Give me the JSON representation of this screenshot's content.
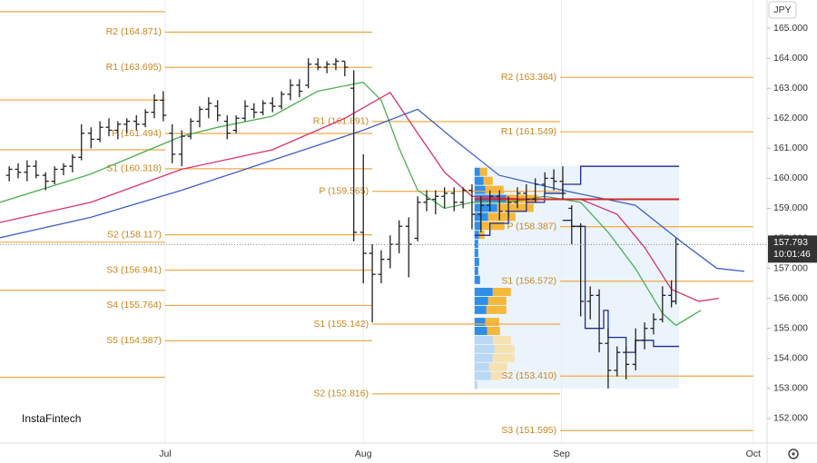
{
  "chart_data": {
    "type": "ohlc",
    "currency": "JPY",
    "logo": "InstaFintech",
    "last_price": 157.793,
    "countdown": "10:01:46",
    "ylim": [
      151.18,
      165.94
    ],
    "yticks": [
      {
        "value": 152,
        "label": "152.000"
      },
      {
        "value": 153,
        "label": "153.000"
      },
      {
        "value": 154,
        "label": "154.000"
      },
      {
        "value": 155,
        "label": "155.000"
      },
      {
        "value": 156,
        "label": "156.000"
      },
      {
        "value": 157,
        "label": "157.000"
      },
      {
        "value": 158,
        "label": "158.000"
      },
      {
        "value": 159,
        "label": "159.000"
      },
      {
        "value": 160,
        "label": "160.000"
      },
      {
        "value": 161,
        "label": "161.000"
      },
      {
        "value": 162,
        "label": "162.000"
      },
      {
        "value": 163,
        "label": "163.000"
      },
      {
        "value": 164,
        "label": "164.000"
      },
      {
        "value": 165,
        "label": "165.000"
      }
    ],
    "xlim": [
      4.16,
      124.16
    ],
    "xticks": [
      {
        "value": 30,
        "label": "Jul"
      },
      {
        "value": 61,
        "label": "Aug"
      },
      {
        "value": 92,
        "label": "Sep"
      },
      {
        "value": 122,
        "label": "Oct"
      }
    ],
    "bar_color": "#222222",
    "ohlc": {
      "x": [
        5.6,
        7.0,
        8.4,
        9.8,
        11.3,
        12.7,
        14.1,
        15.5,
        16.9,
        18.4,
        19.8,
        21.2,
        22.6,
        24.0,
        25.5,
        26.9,
        28.3,
        29.7,
        31.1,
        32.6,
        34.0,
        35.4,
        36.8,
        38.2,
        39.7,
        41.1,
        42.5,
        43.9,
        45.3,
        46.8,
        48.2,
        49.6,
        51.0,
        52.4,
        53.9,
        55.3,
        56.7,
        58.1,
        59.5,
        61.0,
        62.4,
        63.8,
        65.2,
        66.6,
        68.1,
        69.5,
        70.9,
        72.3,
        73.7,
        75.2,
        76.6,
        78.0,
        79.4,
        80.8,
        82.3,
        83.7,
        85.1,
        86.5,
        87.9,
        89.4,
        90.8,
        92.2,
        93.6,
        95.0,
        96.5,
        97.9,
        99.3,
        100.7,
        102.1,
        103.6,
        105.0,
        106.4,
        107.8,
        109.2,
        109.9
      ],
      "open": [
        160.1,
        160.3,
        160.2,
        160.4,
        160.1,
        159.9,
        160.3,
        160.4,
        160.7,
        161.5,
        161.3,
        161.7,
        161.6,
        161.8,
        161.9,
        161.8,
        162.2,
        162.6,
        161.5,
        160.8,
        161.4,
        161.9,
        162.3,
        162.4,
        161.9,
        161.6,
        162.0,
        162.3,
        162.2,
        162.5,
        162.4,
        162.8,
        163.1,
        163.1,
        163.8,
        163.7,
        163.8,
        163.9,
        163.0,
        158.2,
        157.5,
        156.8,
        157.3,
        157.8,
        158.4,
        158.0,
        159.2,
        159.3,
        159.4,
        159.5,
        159.2,
        159.6,
        158.8,
        159.1,
        159.4,
        158.9,
        159.2,
        159.5,
        159.3,
        159.8,
        160.0,
        159.9,
        159.0,
        158.4,
        155.9,
        156.1,
        154.5,
        153.6,
        154.2,
        153.8,
        154.6,
        155.0,
        155.3,
        156.1,
        155.9
      ],
      "high": [
        160.4,
        160.5,
        160.6,
        160.6,
        160.2,
        160.4,
        160.5,
        160.8,
        161.8,
        161.7,
        161.9,
        162.0,
        161.9,
        162.0,
        162.1,
        162.3,
        162.8,
        162.9,
        161.8,
        161.6,
        162.0,
        162.4,
        162.7,
        162.6,
        162.1,
        162.1,
        162.6,
        162.5,
        162.6,
        162.7,
        162.9,
        163.3,
        163.3,
        164.0,
        164.0,
        163.9,
        164.0,
        163.9,
        163.6,
        160.8,
        157.8,
        157.6,
        158.1,
        158.6,
        158.7,
        159.4,
        159.6,
        159.6,
        159.7,
        159.7,
        159.7,
        159.8,
        159.4,
        159.6,
        159.6,
        159.4,
        159.7,
        159.8,
        160.0,
        160.2,
        160.3,
        160.4,
        159.1,
        158.5,
        156.4,
        156.3,
        155.0,
        154.4,
        154.4,
        155.0,
        155.2,
        155.5,
        156.4,
        156.6,
        158.0
      ],
      "low": [
        159.9,
        160.0,
        159.9,
        160.0,
        159.6,
        159.8,
        160.1,
        160.2,
        160.6,
        161.0,
        161.2,
        161.4,
        161.3,
        161.5,
        161.6,
        161.7,
        162.0,
        161.9,
        160.5,
        160.4,
        161.3,
        161.7,
        162.0,
        161.9,
        161.3,
        161.5,
        161.9,
        162.0,
        162.1,
        162.2,
        162.3,
        162.6,
        162.7,
        163.0,
        163.6,
        163.5,
        163.6,
        163.4,
        157.9,
        156.5,
        155.2,
        156.5,
        157.0,
        157.5,
        156.7,
        157.9,
        158.9,
        158.8,
        159.0,
        158.9,
        159.0,
        158.3,
        158.2,
        158.9,
        158.6,
        158.7,
        159.0,
        159.2,
        159.2,
        159.5,
        159.6,
        159.3,
        157.8,
        155.4,
        155.3,
        154.2,
        153.0,
        153.4,
        153.3,
        153.6,
        154.3,
        154.8,
        155.2,
        155.7,
        155.8
      ],
      "close": [
        160.3,
        160.2,
        160.4,
        160.1,
        159.9,
        160.3,
        160.4,
        160.7,
        161.5,
        161.3,
        161.7,
        161.6,
        161.8,
        161.9,
        161.8,
        162.2,
        162.6,
        162.1,
        160.8,
        161.4,
        161.9,
        162.3,
        162.5,
        162.1,
        161.5,
        162.0,
        162.4,
        162.2,
        162.5,
        162.4,
        162.8,
        163.1,
        162.9,
        163.8,
        163.7,
        163.8,
        163.9,
        163.7,
        158.2,
        157.5,
        156.8,
        157.3,
        157.8,
        158.4,
        157.8,
        159.2,
        159.3,
        159.4,
        159.5,
        159.2,
        159.6,
        158.8,
        159.1,
        159.4,
        158.9,
        159.2,
        159.5,
        159.3,
        159.8,
        160.0,
        159.9,
        159.5,
        158.4,
        155.9,
        156.1,
        154.5,
        153.6,
        154.2,
        153.8,
        154.6,
        155.0,
        155.3,
        156.1,
        155.9,
        157.8
      ]
    },
    "lines": [
      {
        "color": "#4caf50",
        "x": [
          4.16,
          18.36,
          32.56,
          38.24,
          46.76,
          53.85,
          60.95,
          63.8,
          66.6,
          69.5,
          73.7,
          78.0,
          83.7,
          89.35,
          95.0,
          99.3,
          103.55,
          107.8,
          109.9,
          113.8
        ],
        "values": [
          159.2,
          160.14,
          161.4,
          161.7,
          162.07,
          162.9,
          163.2,
          162.6,
          161.0,
          159.6,
          159.0,
          159.2,
          159.2,
          159.4,
          159.2,
          158.2,
          157.0,
          155.5,
          155.1,
          155.6
        ]
      },
      {
        "color": "#d6336c",
        "x": [
          4.16,
          18.36,
          32.56,
          46.76,
          58.1,
          65.2,
          69.5,
          73.7,
          78.0,
          86.5,
          95.0,
          100.7,
          105.0,
          109.2,
          113.5,
          116.6
        ],
        "values": [
          158.53,
          159.2,
          160.3,
          160.95,
          162.0,
          162.86,
          161.5,
          160.2,
          159.4,
          159.3,
          159.3,
          158.8,
          157.7,
          156.3,
          155.9,
          156.0
        ]
      },
      {
        "color": "#3f5fc4",
        "x": [
          4.16,
          18.36,
          32.56,
          46.76,
          60.95,
          69.5,
          75.15,
          82.25,
          92.2,
          103.55,
          110.65,
          116.3,
          120.6
        ],
        "values": [
          158.02,
          158.7,
          159.6,
          160.6,
          161.6,
          162.3,
          161.3,
          160.1,
          159.6,
          159.1,
          157.9,
          157.0,
          156.9
        ]
      },
      {
        "color": "#1f2a8c",
        "step": true,
        "x": [
          78.4,
          80.8,
          83.7,
          86.5,
          89.35,
          92.2,
          95.0,
          110.4
        ],
        "values": [
          158.1,
          158.5,
          158.9,
          159.2,
          159.5,
          159.8,
          160.4,
          160.4
        ]
      },
      {
        "color": "#1f2a8c",
        "step": true,
        "x": [
          92.2,
          93.6,
          95.7,
          98.6,
          99.3,
          102.1,
          103.55,
          106.4,
          110.4
        ],
        "values": [
          158.6,
          158.4,
          155.0,
          155.6,
          154.7,
          154.2,
          154.6,
          154.4,
          154.4
        ]
      }
    ],
    "profile": {
      "x": [
        78.4,
        110.4
      ],
      "range": [
        153.0,
        160.4
      ],
      "fill": "#e3f0fb",
      "buy_color": "#2f8ee8",
      "sell_color": "#f5b83d",
      "pale_buy": "#b9d8f3",
      "pale_sell": "#f6e1b0",
      "value_area": [
        154.75,
        160.4
      ],
      "rows": [
        {
          "price": 160.2,
          "buy": 6,
          "sell": 8
        },
        {
          "price": 159.9,
          "buy": 10,
          "sell": 10
        },
        {
          "price": 159.6,
          "buy": 12,
          "sell": 20
        },
        {
          "price": 159.3,
          "buy": 35,
          "sell": 35
        },
        {
          "price": 159.0,
          "buy": 25,
          "sell": 40
        },
        {
          "price": 158.7,
          "buy": 15,
          "sell": 30
        },
        {
          "price": 158.4,
          "buy": 8,
          "sell": 25
        },
        {
          "price": 158.1,
          "buy": 5,
          "sell": 6
        },
        {
          "price": 157.8,
          "buy": 4,
          "sell": 0
        },
        {
          "price": 157.5,
          "buy": 4,
          "sell": 0
        },
        {
          "price": 157.2,
          "buy": 5,
          "sell": 0
        },
        {
          "price": 156.9,
          "buy": 4,
          "sell": 0
        },
        {
          "price": 156.6,
          "buy": 6,
          "sell": 0
        },
        {
          "price": 156.2,
          "buy": 20,
          "sell": 20
        },
        {
          "price": 155.9,
          "buy": 15,
          "sell": 20
        },
        {
          "price": 155.6,
          "buy": 13,
          "sell": 22
        },
        {
          "price": 155.2,
          "buy": 12,
          "sell": 15
        },
        {
          "price": 154.9,
          "buy": 14,
          "sell": 14
        },
        {
          "price": 154.6,
          "buy": 20,
          "sell": 20
        },
        {
          "price": 154.3,
          "buy": 22,
          "sell": 22
        },
        {
          "price": 154.0,
          "buy": 20,
          "sell": 24
        },
        {
          "price": 153.7,
          "buy": 16,
          "sell": 20
        },
        {
          "price": 153.4,
          "buy": 18,
          "sell": 12
        },
        {
          "price": 153.1,
          "buy": 3,
          "sell": 0
        }
      ]
    },
    "poc": {
      "value": 159.3,
      "x": [
        78.4,
        110.4
      ],
      "color": "#d62728"
    },
    "pivot_color": "#f0a84a",
    "pivots": [
      {
        "value": 165.55,
        "x": [
          4.16,
          30
        ]
      },
      {
        "value": 162.61,
        "x": [
          4.16,
          30
        ]
      },
      {
        "value": 160.95,
        "x": [
          4.16,
          30
        ]
      },
      {
        "value": 157.87,
        "x": [
          4.16,
          30
        ]
      },
      {
        "value": 156.27,
        "x": [
          4.16,
          30
        ]
      },
      {
        "value": 153.37,
        "x": [
          4.16,
          30
        ]
      },
      {
        "label": "R2 (164.871)",
        "value": 164.871,
        "x": [
          30,
          62.4
        ]
      },
      {
        "label": "R1 (163.695)",
        "value": 163.695,
        "x": [
          30,
          62.4
        ]
      },
      {
        "label": "P (161.494)",
        "value": 161.494,
        "x": [
          30,
          62.4
        ]
      },
      {
        "label": "S1 (160.318)",
        "value": 160.318,
        "x": [
          30,
          62.4
        ]
      },
      {
        "label": "S2 (158.117)",
        "value": 158.117,
        "x": [
          30,
          62.4
        ]
      },
      {
        "label": "S3 (156.941)",
        "value": 156.941,
        "x": [
          30,
          62.4
        ]
      },
      {
        "label": "S4 (155.764)",
        "value": 155.764,
        "x": [
          30,
          62.4
        ]
      },
      {
        "label": "S5 (154.587)",
        "value": 154.587,
        "x": [
          30,
          62.4
        ]
      },
      {
        "label": "R1 (161.891)",
        "value": 161.891,
        "x": [
          62.4,
          91.8
        ]
      },
      {
        "label": "P (159.565)",
        "value": 159.565,
        "x": [
          62.4,
          91.8
        ]
      },
      {
        "label": "S1 (155.142)",
        "value": 155.142,
        "x": [
          62.4,
          91.8
        ]
      },
      {
        "label": "S2 (152.816)",
        "value": 152.816,
        "x": [
          62.4,
          91.8
        ]
      },
      {
        "label": "R2 (163.364)",
        "value": 163.364,
        "x": [
          91.8,
          122
        ]
      },
      {
        "label": "R1 (161.549)",
        "value": 161.549,
        "x": [
          91.8,
          122
        ]
      },
      {
        "label": "P (158.387)",
        "value": 158.387,
        "x": [
          91.8,
          122
        ]
      },
      {
        "label": "S1 (156.572)",
        "value": 156.572,
        "x": [
          91.8,
          122
        ]
      },
      {
        "label": "S2 (153.410)",
        "value": 153.41,
        "x": [
          91.8,
          122
        ]
      },
      {
        "label": "S3 (151.595)",
        "value": 151.595,
        "x": [
          91.8,
          122
        ]
      }
    ]
  }
}
